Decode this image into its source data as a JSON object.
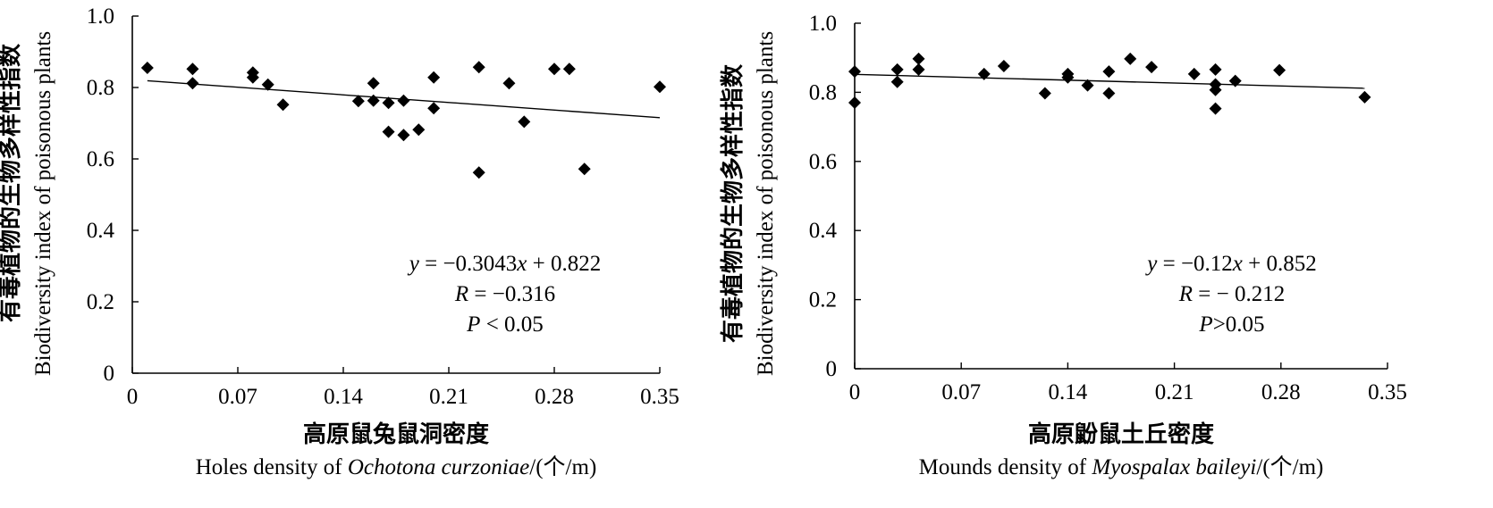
{
  "chart_data": [
    {
      "type": "scatter",
      "ylabel_cn": "有毒植物的生物多样性指数",
      "ylabel_en": "Biodiversity index of poisonous plants",
      "xlabel_cn": "高原鼠兔鼠洞密度",
      "xlabel_en_prefix": "Holes density of ",
      "xlabel_en_species": "Ochotona curzoniae",
      "xlabel_en_suffix": "/(个/m)",
      "xlim": [
        0,
        0.35
      ],
      "ylim": [
        0,
        1.0
      ],
      "xticks": [
        "0",
        "0.07",
        "0.14",
        "0.21",
        "0.28",
        "0.35"
      ],
      "yticks": [
        "0",
        "0.2",
        "0.4",
        "0.6",
        "0.8",
        "1.0"
      ],
      "trendline": {
        "slope": -0.3043,
        "intercept": 0.822,
        "x_range": [
          0.01,
          0.35
        ]
      },
      "annotation": {
        "eq_var_y": "y",
        "eq_mid": " = −0.3043",
        "eq_var_x": "x",
        "eq_end": " + 0.822",
        "r_var": "R",
        "r_val": " = −0.316",
        "p_var": "P",
        "p_val": " < 0.05"
      },
      "points": [
        {
          "x": 0.01,
          "y": 0.855
        },
        {
          "x": 0.04,
          "y": 0.852
        },
        {
          "x": 0.04,
          "y": 0.812
        },
        {
          "x": 0.08,
          "y": 0.842
        },
        {
          "x": 0.08,
          "y": 0.828
        },
        {
          "x": 0.09,
          "y": 0.808
        },
        {
          "x": 0.1,
          "y": 0.752
        },
        {
          "x": 0.15,
          "y": 0.762
        },
        {
          "x": 0.16,
          "y": 0.812
        },
        {
          "x": 0.16,
          "y": 0.763
        },
        {
          "x": 0.17,
          "y": 0.757
        },
        {
          "x": 0.17,
          "y": 0.676
        },
        {
          "x": 0.18,
          "y": 0.763
        },
        {
          "x": 0.18,
          "y": 0.667
        },
        {
          "x": 0.19,
          "y": 0.682
        },
        {
          "x": 0.2,
          "y": 0.828
        },
        {
          "x": 0.2,
          "y": 0.742
        },
        {
          "x": 0.23,
          "y": 0.857
        },
        {
          "x": 0.23,
          "y": 0.562
        },
        {
          "x": 0.25,
          "y": 0.812
        },
        {
          "x": 0.26,
          "y": 0.704
        },
        {
          "x": 0.28,
          "y": 0.852
        },
        {
          "x": 0.29,
          "y": 0.852
        },
        {
          "x": 0.3,
          "y": 0.572
        },
        {
          "x": 0.35,
          "y": 0.802
        }
      ]
    },
    {
      "type": "scatter",
      "ylabel_cn": "有毒植物的生物多样性指数",
      "ylabel_en": "Biodiversity index of poisonous plants",
      "xlabel_cn": "高原鼢鼠土丘密度",
      "xlabel_en_prefix": "Mounds density of ",
      "xlabel_en_species": "Myospalax baileyi",
      "xlabel_en_suffix": "/(个/m)",
      "xlim": [
        0,
        0.35
      ],
      "ylim": [
        0,
        1.0
      ],
      "xticks": [
        "0",
        "0.07",
        "0.14",
        "0.21",
        "0.28",
        "0.35"
      ],
      "yticks": [
        "0",
        "0.2",
        "0.4",
        "0.6",
        "0.8",
        "1.0"
      ],
      "trendline": {
        "slope": -0.12,
        "intercept": 0.852,
        "x_range": [
          0,
          0.335
        ]
      },
      "annotation": {
        "eq_var_y": "y",
        "eq_mid": " = −0.12",
        "eq_var_x": "x",
        "eq_end": " + 0.852",
        "r_var": "R",
        "r_val": " = − 0.212",
        "p_var": "P",
        "p_val": ">0.05"
      },
      "points": [
        {
          "x": 0.0,
          "y": 0.86
        },
        {
          "x": 0.0,
          "y": 0.77
        },
        {
          "x": 0.028,
          "y": 0.866
        },
        {
          "x": 0.028,
          "y": 0.83
        },
        {
          "x": 0.042,
          "y": 0.897
        },
        {
          "x": 0.042,
          "y": 0.866
        },
        {
          "x": 0.085,
          "y": 0.853
        },
        {
          "x": 0.098,
          "y": 0.876
        },
        {
          "x": 0.125,
          "y": 0.797
        },
        {
          "x": 0.14,
          "y": 0.853
        },
        {
          "x": 0.14,
          "y": 0.843
        },
        {
          "x": 0.153,
          "y": 0.82
        },
        {
          "x": 0.167,
          "y": 0.86
        },
        {
          "x": 0.167,
          "y": 0.797
        },
        {
          "x": 0.181,
          "y": 0.897
        },
        {
          "x": 0.195,
          "y": 0.873
        },
        {
          "x": 0.223,
          "y": 0.853
        },
        {
          "x": 0.237,
          "y": 0.866
        },
        {
          "x": 0.237,
          "y": 0.823
        },
        {
          "x": 0.237,
          "y": 0.807
        },
        {
          "x": 0.237,
          "y": 0.753
        },
        {
          "x": 0.25,
          "y": 0.833
        },
        {
          "x": 0.279,
          "y": 0.864
        },
        {
          "x": 0.335,
          "y": 0.786
        }
      ]
    }
  ]
}
